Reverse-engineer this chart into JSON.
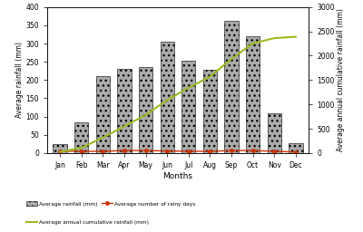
{
  "months": [
    "Jan",
    "Feb",
    "Mar",
    "Apr",
    "May",
    "Jun",
    "Jul",
    "Aug",
    "Sep",
    "Oct",
    "Nov",
    "Dec"
  ],
  "avg_rainfall": [
    25,
    85,
    210,
    230,
    235,
    305,
    252,
    228,
    362,
    320,
    108,
    28
  ],
  "avg_rainy_days": [
    5,
    5,
    5,
    7,
    7,
    6,
    5,
    5,
    7,
    7,
    5,
    3
  ],
  "avg_cumulative": [
    25,
    110,
    320,
    550,
    785,
    1090,
    1342,
    1570,
    1932,
    2252,
    2360,
    2388
  ],
  "rainy_days_color": "#cc3300",
  "cumulative_color": "#99bb22",
  "ylim_left": [
    0,
    400
  ],
  "ylim_right": [
    0,
    3000
  ],
  "yticks_left": [
    0,
    50,
    100,
    150,
    200,
    250,
    300,
    350,
    400
  ],
  "yticks_right": [
    0,
    500,
    1000,
    1500,
    2000,
    2500,
    3000
  ],
  "ylabel_left": "Average rainfall (mm)",
  "ylabel_right": "Average annual cumulative rainfall (mm)",
  "xlabel": "Months",
  "legend_bar": "Average rainfall (mm)",
  "legend_rainy": "Average number of rainy days",
  "legend_cumul": "Average annual cumulative rainfall (mm)",
  "background_color": "#ffffff"
}
